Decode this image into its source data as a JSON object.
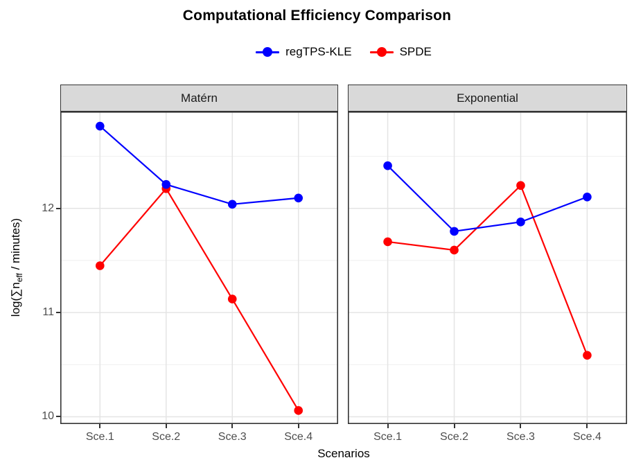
{
  "title": "Computational Efficiency Comparison",
  "legend": {
    "items": [
      {
        "label": "regTPS-KLE",
        "color": "#0000FF",
        "icon": "point-with-line-icon"
      },
      {
        "label": "SPDE",
        "color": "#FF0000",
        "icon": "point-with-line-icon"
      }
    ]
  },
  "axes": {
    "x_title": "Scenarios",
    "y_title_text": "log(∑n_eff / minutes)",
    "y_title": {
      "prefix": "log(∑n",
      "sub": "eff",
      "suffix": " / minutes)"
    },
    "y_tick_labels": [
      "12",
      "11",
      "10"
    ],
    "x_tick_labels": [
      "Sce.1",
      "Sce.2",
      "Sce.3",
      "Sce.4"
    ]
  },
  "chart_data": {
    "type": "line",
    "title": "Computational Efficiency Comparison",
    "xlabel": "Scenarios",
    "ylabel": "log(∑n_eff / minutes)",
    "categories": [
      "Sce.1",
      "Sce.2",
      "Sce.3",
      "Sce.4"
    ],
    "facets": [
      {
        "label": "Matérn",
        "series": [
          {
            "name": "regTPS-KLE",
            "color": "#0000FF",
            "values": [
              12.79,
              12.23,
              12.04,
              12.1
            ]
          },
          {
            "name": "SPDE",
            "color": "#FF0000",
            "values": [
              11.45,
              12.19,
              11.13,
              10.06
            ]
          }
        ]
      },
      {
        "label": "Exponential",
        "series": [
          {
            "name": "regTPS-KLE",
            "color": "#0000FF",
            "values": [
              12.41,
              11.78,
              11.87,
              12.11
            ]
          },
          {
            "name": "SPDE",
            "color": "#FF0000",
            "values": [
              11.68,
              11.6,
              12.22,
              10.59
            ]
          }
        ]
      }
    ],
    "ylim": [
      9.93,
      12.93
    ],
    "yticks_major": [
      10,
      11,
      12
    ],
    "yticks_minor": [
      10.5,
      11.5,
      12.5
    ],
    "grid": true,
    "legend_position": "top"
  },
  "style": {
    "series_blue": "#0000FF",
    "series_red": "#FF0000",
    "strip_bg": "#D9D9D9",
    "panel_border": "#333333",
    "grid_major": "#E4E4E4",
    "grid_minor": "#F1F1F1",
    "tick_color": "#333333",
    "tick_label_color": "#4D4D4D"
  }
}
